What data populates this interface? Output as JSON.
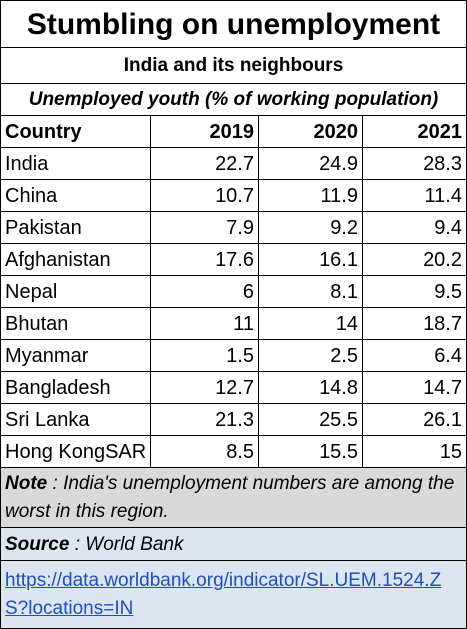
{
  "header": {
    "title": "Stumbling on unemployment",
    "subtitle": "India and its neighbours",
    "caption": "Unemployed youth (% of working population)"
  },
  "table": {
    "columns": [
      "Country",
      "2019",
      "2020",
      "2021"
    ],
    "rows": [
      [
        "India",
        22.7,
        24.9,
        28.3
      ],
      [
        "China",
        10.7,
        11.9,
        11.4
      ],
      [
        "Pakistan",
        7.9,
        9.2,
        9.4
      ],
      [
        "Afghanistan",
        17.6,
        16.1,
        20.2
      ],
      [
        "Nepal",
        6,
        8.1,
        9.5
      ],
      [
        "Bhutan",
        11,
        14,
        18.7
      ],
      [
        "Myanmar",
        1.5,
        2.5,
        6.4
      ],
      [
        "Bangladesh",
        12.7,
        14.8,
        14.7
      ],
      [
        "Sri Lanka",
        21.3,
        25.5,
        26.1
      ],
      [
        "Hong KongSAR",
        8.5,
        15.5,
        15
      ]
    ]
  },
  "note": {
    "label": "Note",
    "text": ": India's unemployment numbers are among the worst in this region."
  },
  "source": {
    "label": "Source",
    "text": ": World Bank",
    "link": "https://data.worldbank.org/indicator/SL.UEM.1524.ZS?locations=IN"
  }
}
